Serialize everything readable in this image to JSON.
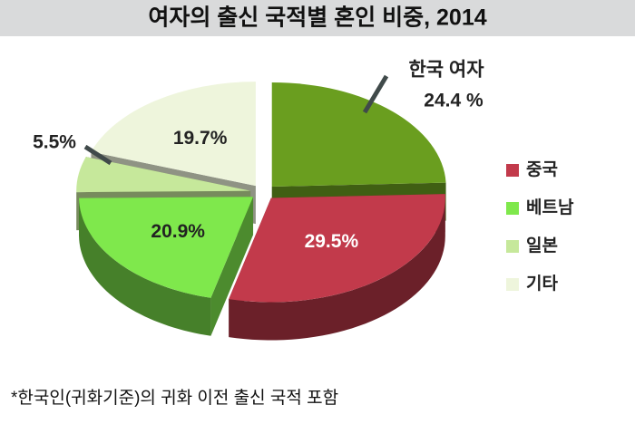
{
  "chart_data": {
    "type": "pie",
    "title": "여자의 출신 국적별 혼인 비중, 2014",
    "categories": [
      "한국 여자",
      "중국",
      "베트남",
      "일본",
      "기타"
    ],
    "values": [
      24.4,
      29.5,
      20.9,
      5.5,
      19.7
    ],
    "value_labels": [
      "24.4 %",
      "29.5%",
      "20.9%",
      "5.5%",
      "19.7%"
    ],
    "colors": [
      "#6a9e1f",
      "#c23a4b",
      "#7fe84c",
      "#c6e89b",
      "#eef5dc"
    ],
    "note": "*한국인(귀화기준)의 귀화 이전 출신 국적 포함"
  }
}
